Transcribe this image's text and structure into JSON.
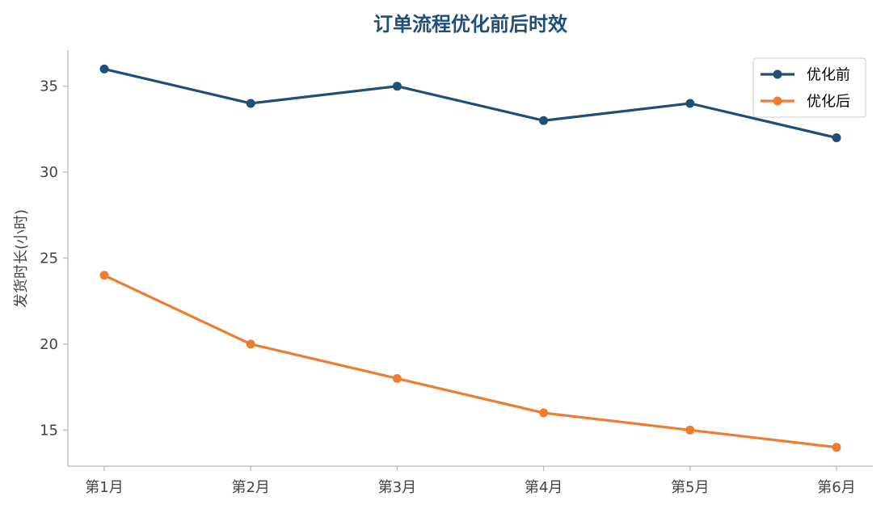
{
  "chart_data": {
    "type": "line",
    "title": "订单流程优化前后时效",
    "xlabel": "",
    "ylabel": "发货时长(小时)",
    "categories": [
      "第1月",
      "第2月",
      "第3月",
      "第4月",
      "第5月",
      "第6月"
    ],
    "series": [
      {
        "name": "优化前",
        "values": [
          36,
          34,
          35,
          33,
          34,
          32
        ],
        "color": "#1f4e79"
      },
      {
        "name": "优化后",
        "values": [
          24,
          20,
          18,
          16,
          15,
          14
        ],
        "color": "#ed7d31"
      }
    ],
    "ylim": [
      12.9,
      37.1
    ],
    "yticks": [
      15,
      20,
      25,
      30,
      35
    ],
    "grid": false,
    "legend_position": "top-right"
  }
}
